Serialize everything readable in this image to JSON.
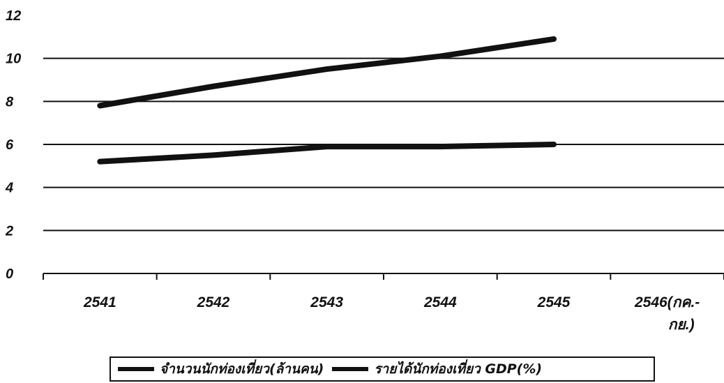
{
  "chart_data": {
    "type": "line",
    "categories": [
      "2541",
      "2542",
      "2543",
      "2544",
      "2545",
      "2546(กค.-\nกย.)"
    ],
    "series": [
      {
        "name": "จำนวนนักท่องเที่ยว(ล้านคน)",
        "values": [
          5.2,
          5.5,
          5.9,
          5.9,
          6.0,
          null
        ],
        "color": "#111111"
      },
      {
        "name": "รายได้นักท่องเที่ยว GDP(%)",
        "values": [
          7.8,
          8.7,
          9.5,
          10.1,
          10.9,
          null
        ],
        "color": "#111111"
      }
    ],
    "yticks": [
      "0",
      "2",
      "4",
      "6",
      "8",
      "10",
      "12"
    ],
    "ylim": [
      0,
      12
    ],
    "grid": true,
    "legend_position": "bottom",
    "title": "",
    "xlabel": "",
    "ylabel": ""
  }
}
